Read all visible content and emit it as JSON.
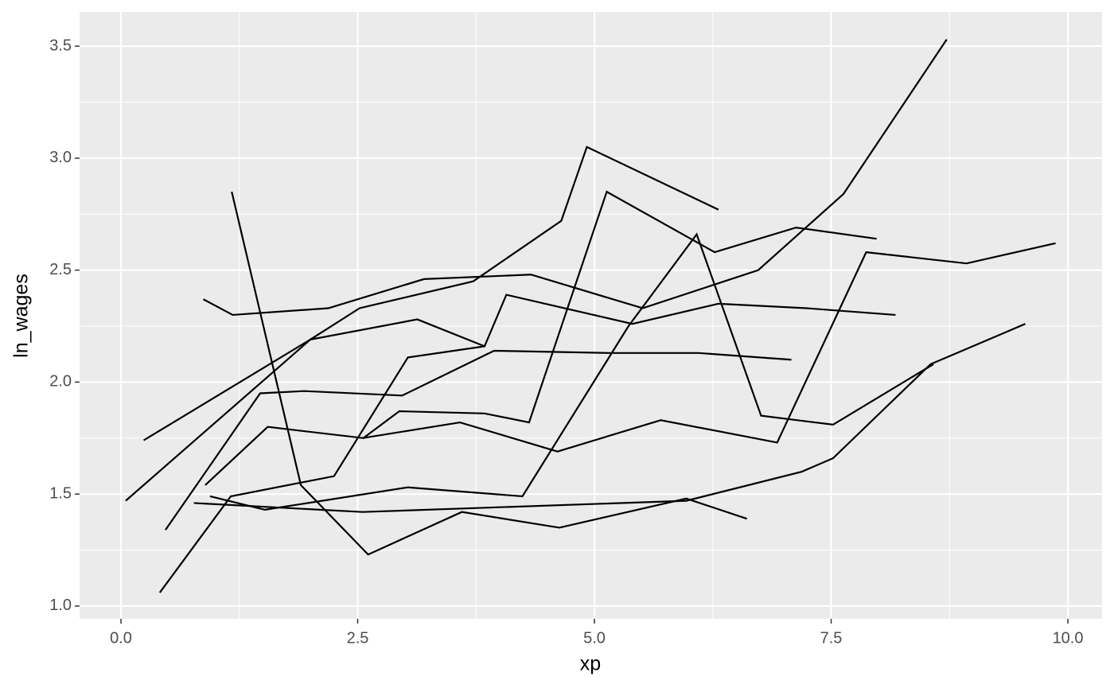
{
  "chart_data": {
    "type": "line",
    "x_label": "xp",
    "y_label": "ln_wages",
    "xlim": [
      -0.437,
      10.361
    ],
    "ylim": [
      0.943,
      3.653
    ],
    "xticks": [
      {
        "value": 0,
        "label": "0.0"
      },
      {
        "value": 2.5,
        "label": "2.5"
      },
      {
        "value": 5,
        "label": "5.0"
      },
      {
        "value": 7.5,
        "label": "7.5"
      },
      {
        "value": 10,
        "label": "10.0"
      }
    ],
    "yticks": [
      {
        "value": 1,
        "label": "1.0"
      },
      {
        "value": 1.5,
        "label": "1.5"
      },
      {
        "value": 2,
        "label": "2.0"
      },
      {
        "value": 2.5,
        "label": "2.5"
      },
      {
        "value": 3,
        "label": "3.0"
      },
      {
        "value": 3.5,
        "label": "3.5"
      }
    ],
    "grid": true,
    "series": [
      {
        "color": "#000000",
        "x": [
          0.87,
          1.18,
          2.19,
          3.2,
          4.33,
          5.51,
          6.73,
          7.63,
          8.72
        ],
        "values": [
          2.37,
          2.3,
          2.33,
          2.46,
          2.48,
          2.33,
          2.5,
          2.84,
          3.53
        ]
      },
      {
        "color": "#000000",
        "x": [
          0.05,
          2.0,
          2.52,
          3.72,
          4.65,
          4.92,
          6.31
        ],
        "values": [
          1.47,
          2.19,
          2.33,
          2.45,
          2.72,
          3.05,
          2.77
        ]
      },
      {
        "color": "#000000",
        "x": [
          0.24,
          2.0,
          3.13,
          3.84,
          4.07,
          5.4,
          6.31,
          7.24,
          8.18
        ],
        "values": [
          1.74,
          2.19,
          2.28,
          2.16,
          2.39,
          2.26,
          2.35,
          2.33,
          2.3
        ]
      },
      {
        "color": "#000000",
        "x": [
          0.47,
          1.47,
          1.94,
          2.97,
          3.94,
          5.15,
          6.1,
          7.08
        ],
        "values": [
          1.34,
          1.95,
          1.96,
          1.94,
          2.14,
          2.13,
          2.13,
          2.1
        ]
      },
      {
        "color": "#000000",
        "x": [
          0.89,
          1.55,
          2.56,
          2.94,
          3.84,
          4.31,
          5.13,
          6.27,
          7.13,
          7.98
        ],
        "values": [
          1.54,
          1.8,
          1.75,
          1.87,
          1.86,
          1.82,
          2.85,
          2.58,
          2.69,
          2.64
        ]
      },
      {
        "color": "#000000",
        "x": [
          1.17,
          1.9,
          2.61,
          3.6,
          4.63,
          5.97,
          6.61
        ],
        "values": [
          2.85,
          1.54,
          1.23,
          1.42,
          1.35,
          1.48,
          1.39
        ]
      },
      {
        "color": "#000000",
        "x": [
          0.41,
          1.16,
          2.25,
          3.03,
          3.84
        ],
        "values": [
          1.06,
          1.49,
          1.58,
          2.11,
          2.16
        ]
      },
      {
        "color": "#000000",
        "x": [
          0.94,
          1.52,
          3.03,
          4.24,
          5.36,
          6.08,
          6.76,
          7.52,
          8.58
        ],
        "values": [
          1.49,
          1.43,
          1.53,
          1.49,
          2.25,
          2.66,
          1.85,
          1.81,
          2.08
        ]
      },
      {
        "color": "#000000",
        "x": [
          0.77,
          2.55,
          5.97,
          7.19,
          7.52,
          8.55,
          9.55
        ],
        "values": [
          1.46,
          1.42,
          1.47,
          1.6,
          1.66,
          2.08,
          2.26
        ]
      },
      {
        "color": "#000000",
        "x": [
          2.55,
          3.58,
          4.61,
          5.7,
          6.93,
          7.87,
          8.93,
          9.87
        ],
        "values": [
          1.75,
          1.82,
          1.69,
          1.83,
          1.73,
          2.58,
          2.53,
          2.62
        ]
      }
    ]
  }
}
